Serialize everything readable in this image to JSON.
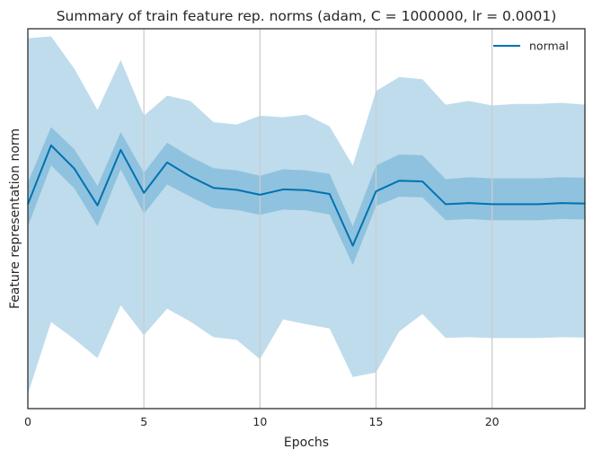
{
  "chart_data": {
    "type": "line",
    "title": "Summary of train feature rep. norms (adam, C = 1000000, lr = 0.0001)",
    "xlabel": "Epochs",
    "ylabel": "Feature representation norm",
    "xlim": [
      0,
      24
    ],
    "ylim": [
      0,
      1
    ],
    "x_ticks": [
      0,
      5,
      10,
      15,
      20
    ],
    "y_ticks_visible": false,
    "grid": "vertical",
    "legend": {
      "position": "top-right",
      "entries": [
        "normal"
      ]
    },
    "colors": {
      "line": "#0072b2",
      "inner_band": "#0072b2",
      "outer_band": "#0072b2",
      "grid": "#cccccc",
      "frame": "#262626"
    },
    "x": [
      0,
      1,
      2,
      3,
      4,
      5,
      6,
      7,
      8,
      9,
      10,
      11,
      12,
      13,
      14,
      15,
      16,
      17,
      18,
      19,
      20,
      21,
      22,
      23,
      24
    ],
    "series": [
      {
        "name": "normal",
        "values": [
          0.538,
          0.693,
          0.632,
          0.535,
          0.681,
          0.568,
          0.648,
          0.611,
          0.581,
          0.576,
          0.563,
          0.577,
          0.575,
          0.565,
          0.429,
          0.572,
          0.6,
          0.598,
          0.538,
          0.541,
          0.538,
          0.538,
          0.538,
          0.541,
          0.54
        ],
        "band_inner_upper": [
          0.595,
          0.741,
          0.683,
          0.586,
          0.728,
          0.621,
          0.7,
          0.663,
          0.633,
          0.627,
          0.613,
          0.63,
          0.627,
          0.618,
          0.48,
          0.64,
          0.669,
          0.667,
          0.604,
          0.609,
          0.606,
          0.606,
          0.606,
          0.609,
          0.608
        ],
        "band_inner_lower": [
          0.48,
          0.64,
          0.58,
          0.48,
          0.63,
          0.513,
          0.59,
          0.558,
          0.528,
          0.523,
          0.51,
          0.524,
          0.522,
          0.511,
          0.378,
          0.533,
          0.558,
          0.556,
          0.496,
          0.499,
          0.496,
          0.496,
          0.496,
          0.499,
          0.498
        ],
        "band_outer_upper": [
          0.975,
          0.98,
          0.895,
          0.786,
          0.918,
          0.771,
          0.824,
          0.81,
          0.754,
          0.748,
          0.771,
          0.767,
          0.774,
          0.743,
          0.64,
          0.836,
          0.873,
          0.867,
          0.8,
          0.81,
          0.798,
          0.802,
          0.802,
          0.805,
          0.8
        ],
        "band_outer_lower": [
          0.038,
          0.228,
          0.183,
          0.133,
          0.272,
          0.193,
          0.263,
          0.229,
          0.188,
          0.181,
          0.13,
          0.235,
          0.222,
          0.211,
          0.083,
          0.095,
          0.203,
          0.249,
          0.186,
          0.188,
          0.186,
          0.186,
          0.186,
          0.188,
          0.187
        ]
      }
    ]
  }
}
